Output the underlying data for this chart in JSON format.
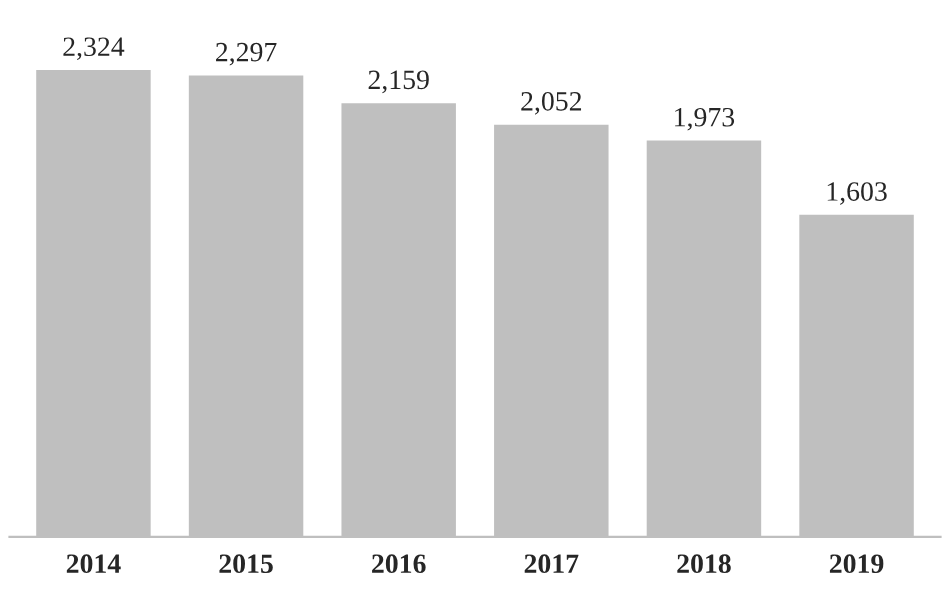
{
  "chart_data": {
    "type": "bar",
    "categories": [
      "2014",
      "2015",
      "2016",
      "2017",
      "2018",
      "2019"
    ],
    "values": [
      2324,
      2297,
      2159,
      2052,
      1973,
      1603
    ],
    "color": "#bfbfbf",
    "value_labels": [
      "2,324",
      "2,297",
      "2,159",
      "2,052",
      "1,973",
      "1,603"
    ],
    "grid": false,
    "legend": false
  }
}
